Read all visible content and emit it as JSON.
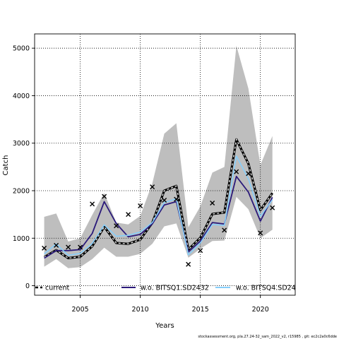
{
  "chart_data": {
    "type": "line",
    "title": "",
    "xlabel": "Years",
    "ylabel": "Catch",
    "xlim": [
      2001.2,
      2022.9
    ],
    "ylim": [
      -200,
      5300
    ],
    "xticks": [
      2005,
      2010,
      2015,
      2020
    ],
    "yticks": [
      0,
      1000,
      2000,
      3000,
      4000,
      5000
    ],
    "grid": true,
    "legend_position": "bottom",
    "x": [
      2002,
      2003,
      2004,
      2005,
      2006,
      2007,
      2008,
      2009,
      2010,
      2011,
      2012,
      2013,
      2014,
      2015,
      2016,
      2017,
      2018,
      2019,
      2020,
      2021
    ],
    "band": {
      "color": "#bebebe",
      "lower": [
        400,
        560,
        370,
        390,
        560,
        800,
        610,
        610,
        670,
        880,
        1250,
        1310,
        590,
        780,
        940,
        950,
        1870,
        1610,
        1000,
        1180
      ],
      "upper": [
        1450,
        1520,
        930,
        1000,
        1490,
        1950,
        1330,
        1290,
        1470,
        2150,
        3200,
        3420,
        1230,
        1670,
        2380,
        2500,
        5050,
        4150,
        2540,
        3150
      ]
    },
    "observed": {
      "marker": "x",
      "values": [
        790,
        850,
        810,
        810,
        1720,
        1880,
        1260,
        1500,
        1680,
        2080,
        1800,
        1820,
        450,
        740,
        1740,
        1170,
        2400,
        2360,
        1110,
        1640
      ]
    },
    "series": [
      {
        "name": "current",
        "color": "#000000",
        "style": "dashed-outline",
        "values": [
          600,
          750,
          580,
          610,
          830,
          1240,
          900,
          880,
          970,
          1320,
          2000,
          2100,
          760,
          1010,
          1510,
          1540,
          3080,
          2570,
          1590,
          1950
        ]
      },
      {
        "name": "w.o. BITSQ1.SD2432",
        "color": "#2b1a7a",
        "style": "solid",
        "values": [
          580,
          740,
          740,
          760,
          1100,
          1770,
          1310,
          1030,
          1080,
          1300,
          1700,
          1770,
          710,
          940,
          1330,
          1300,
          2300,
          1970,
          1360,
          1860
        ]
      },
      {
        "name": "w.o. BITSQ4.SD24",
        "color": "#87cefa",
        "style": "solid",
        "values": [
          670,
          880,
          640,
          680,
          890,
          1280,
          1040,
          1060,
          1130,
          1330,
          1750,
          1830,
          650,
          900,
          1290,
          1270,
          2730,
          2250,
          1460,
          1810
        ]
      }
    ]
  },
  "legend": {
    "current": "current",
    "bitsq1": "w.o. BITSQ1.SD2432",
    "bitsq4": "w.o. BITSQ4.SD24"
  },
  "footer": "stockassessment.org, pla.27.24-32_sam_2022_v2, r15985 , git: ec2c2a0c6dde"
}
